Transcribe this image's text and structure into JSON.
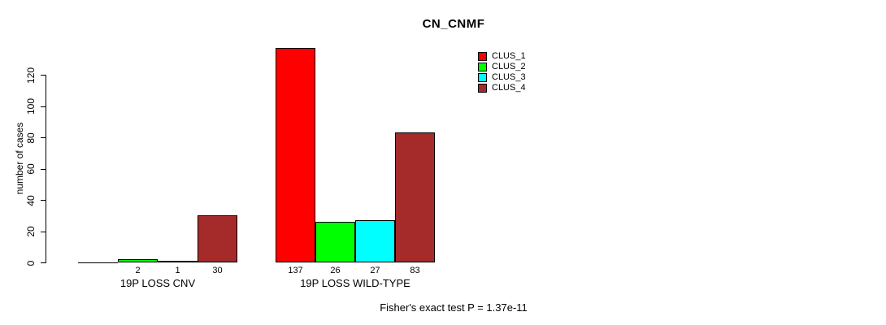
{
  "title": "CN_CNMF",
  "annotation": "Fisher's exact test P = 1.37e-11",
  "chart_data": {
    "type": "bar",
    "title": "CN_CNMF",
    "xlabel": "",
    "ylabel": "number of cases",
    "ylim": [
      0,
      137
    ],
    "yticks": [
      0,
      20,
      40,
      60,
      80,
      100,
      120
    ],
    "grid": false,
    "legend_position": "top-right",
    "categories": [
      "19P LOSS CNV",
      "19P LOSS WILD-TYPE"
    ],
    "series": [
      {
        "name": "CLUS_1",
        "color": "#ff0000",
        "values": [
          0,
          137
        ]
      },
      {
        "name": "CLUS_2",
        "color": "#00ff00",
        "values": [
          2,
          26
        ]
      },
      {
        "name": "CLUS_3",
        "color": "#00ffff",
        "values": [
          1,
          27
        ]
      },
      {
        "name": "CLUS_4",
        "color": "#a52a2a",
        "values": [
          30,
          83
        ]
      }
    ],
    "bar_labels": [
      [
        "",
        "2",
        "1",
        "30"
      ],
      [
        "137",
        "26",
        "27",
        "83"
      ]
    ],
    "annotation": "Fisher's exact test P = 1.37e-11"
  }
}
